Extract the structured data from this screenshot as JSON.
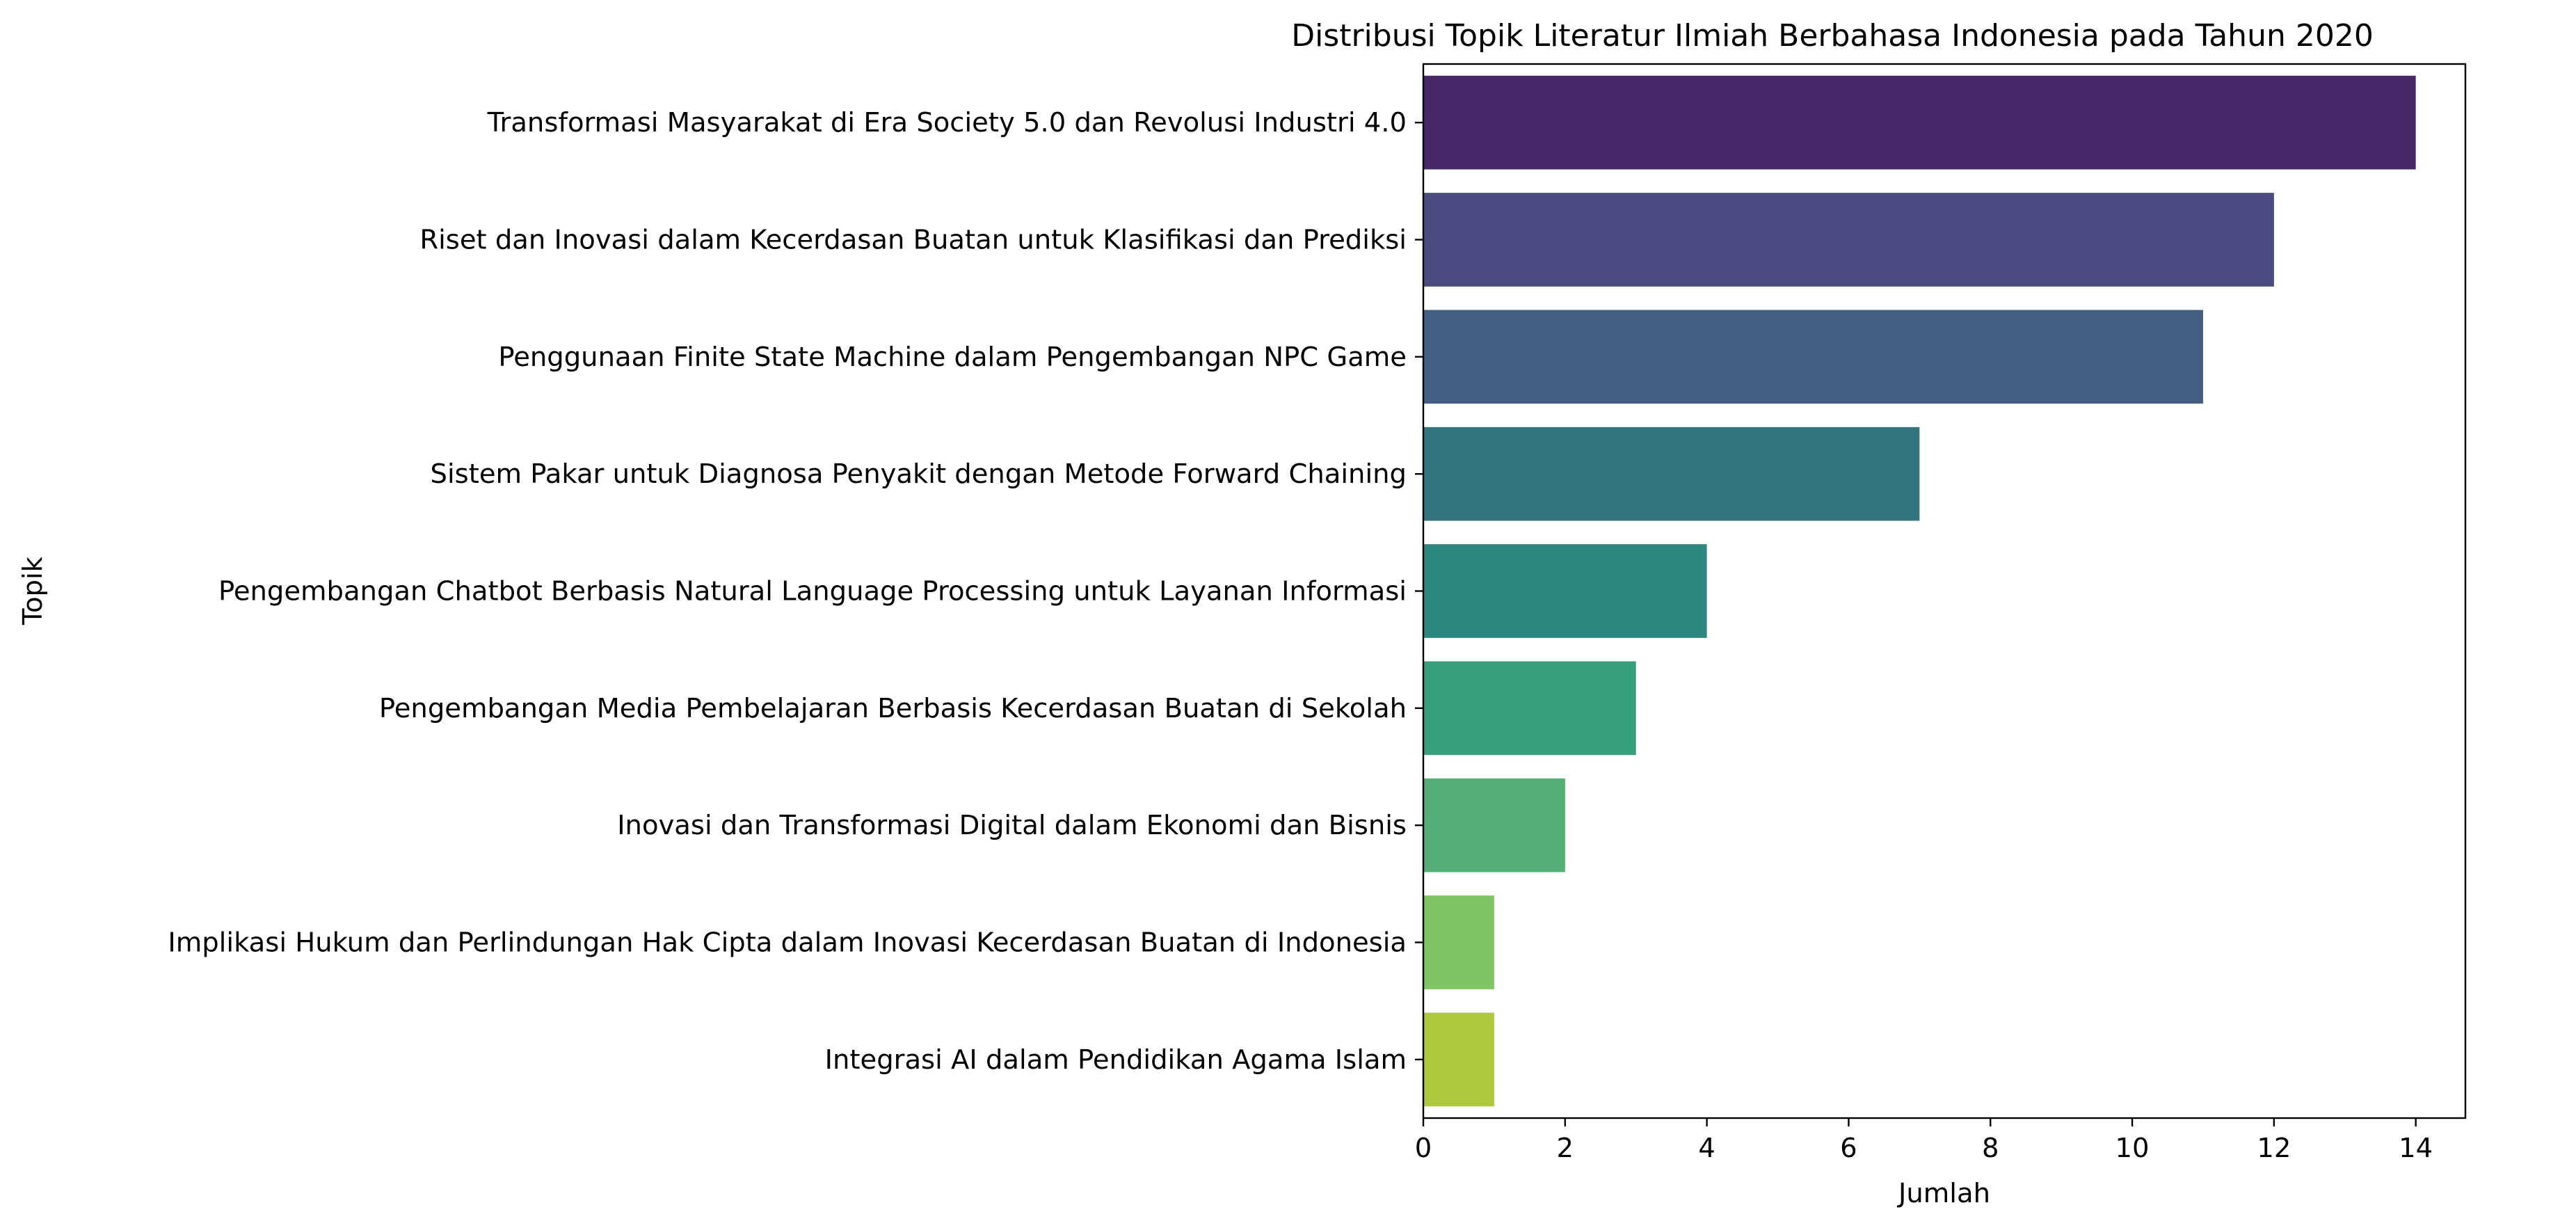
{
  "chart_data": {
    "type": "bar",
    "orientation": "horizontal",
    "title": "Distribusi Topik Literatur Ilmiah Berbahasa Indonesia pada Tahun 2020",
    "xlabel": "Jumlah",
    "ylabel": "Topik",
    "categories": [
      "Transformasi Masyarakat di Era Society 5.0 dan Revolusi Industri 4.0",
      "Riset dan Inovasi dalam Kecerdasan Buatan untuk Klasifikasi dan Prediksi",
      "Penggunaan Finite State Machine dalam Pengembangan NPC Game",
      "Sistem Pakar untuk Diagnosa Penyakit dengan Metode Forward Chaining",
      "Pengembangan Chatbot Berbasis Natural Language Processing untuk Layanan Informasi",
      "Pengembangan Media Pembelajaran Berbasis Kecerdasan Buatan di Sekolah",
      "Inovasi dan Transformasi Digital dalam Ekonomi dan Bisnis",
      "Implikasi Hukum dan Perlindungan Hak Cipta dalam Inovasi Kecerdasan Buatan di Indonesia",
      "Integrasi AI dalam Pendidikan Agama Islam"
    ],
    "values": [
      14,
      12,
      11,
      7,
      4,
      3,
      2,
      1,
      1
    ],
    "colors": [
      "#482769",
      "#4a4b7f",
      "#425f82",
      "#357580",
      "#2e877e",
      "#35a07b",
      "#52ae74",
      "#80c463",
      "#adc93e"
    ],
    "xlim": [
      0,
      14.7
    ],
    "xticks": [
      0,
      2,
      4,
      6,
      8,
      10,
      12,
      14
    ],
    "grid": false,
    "legend": "none"
  }
}
